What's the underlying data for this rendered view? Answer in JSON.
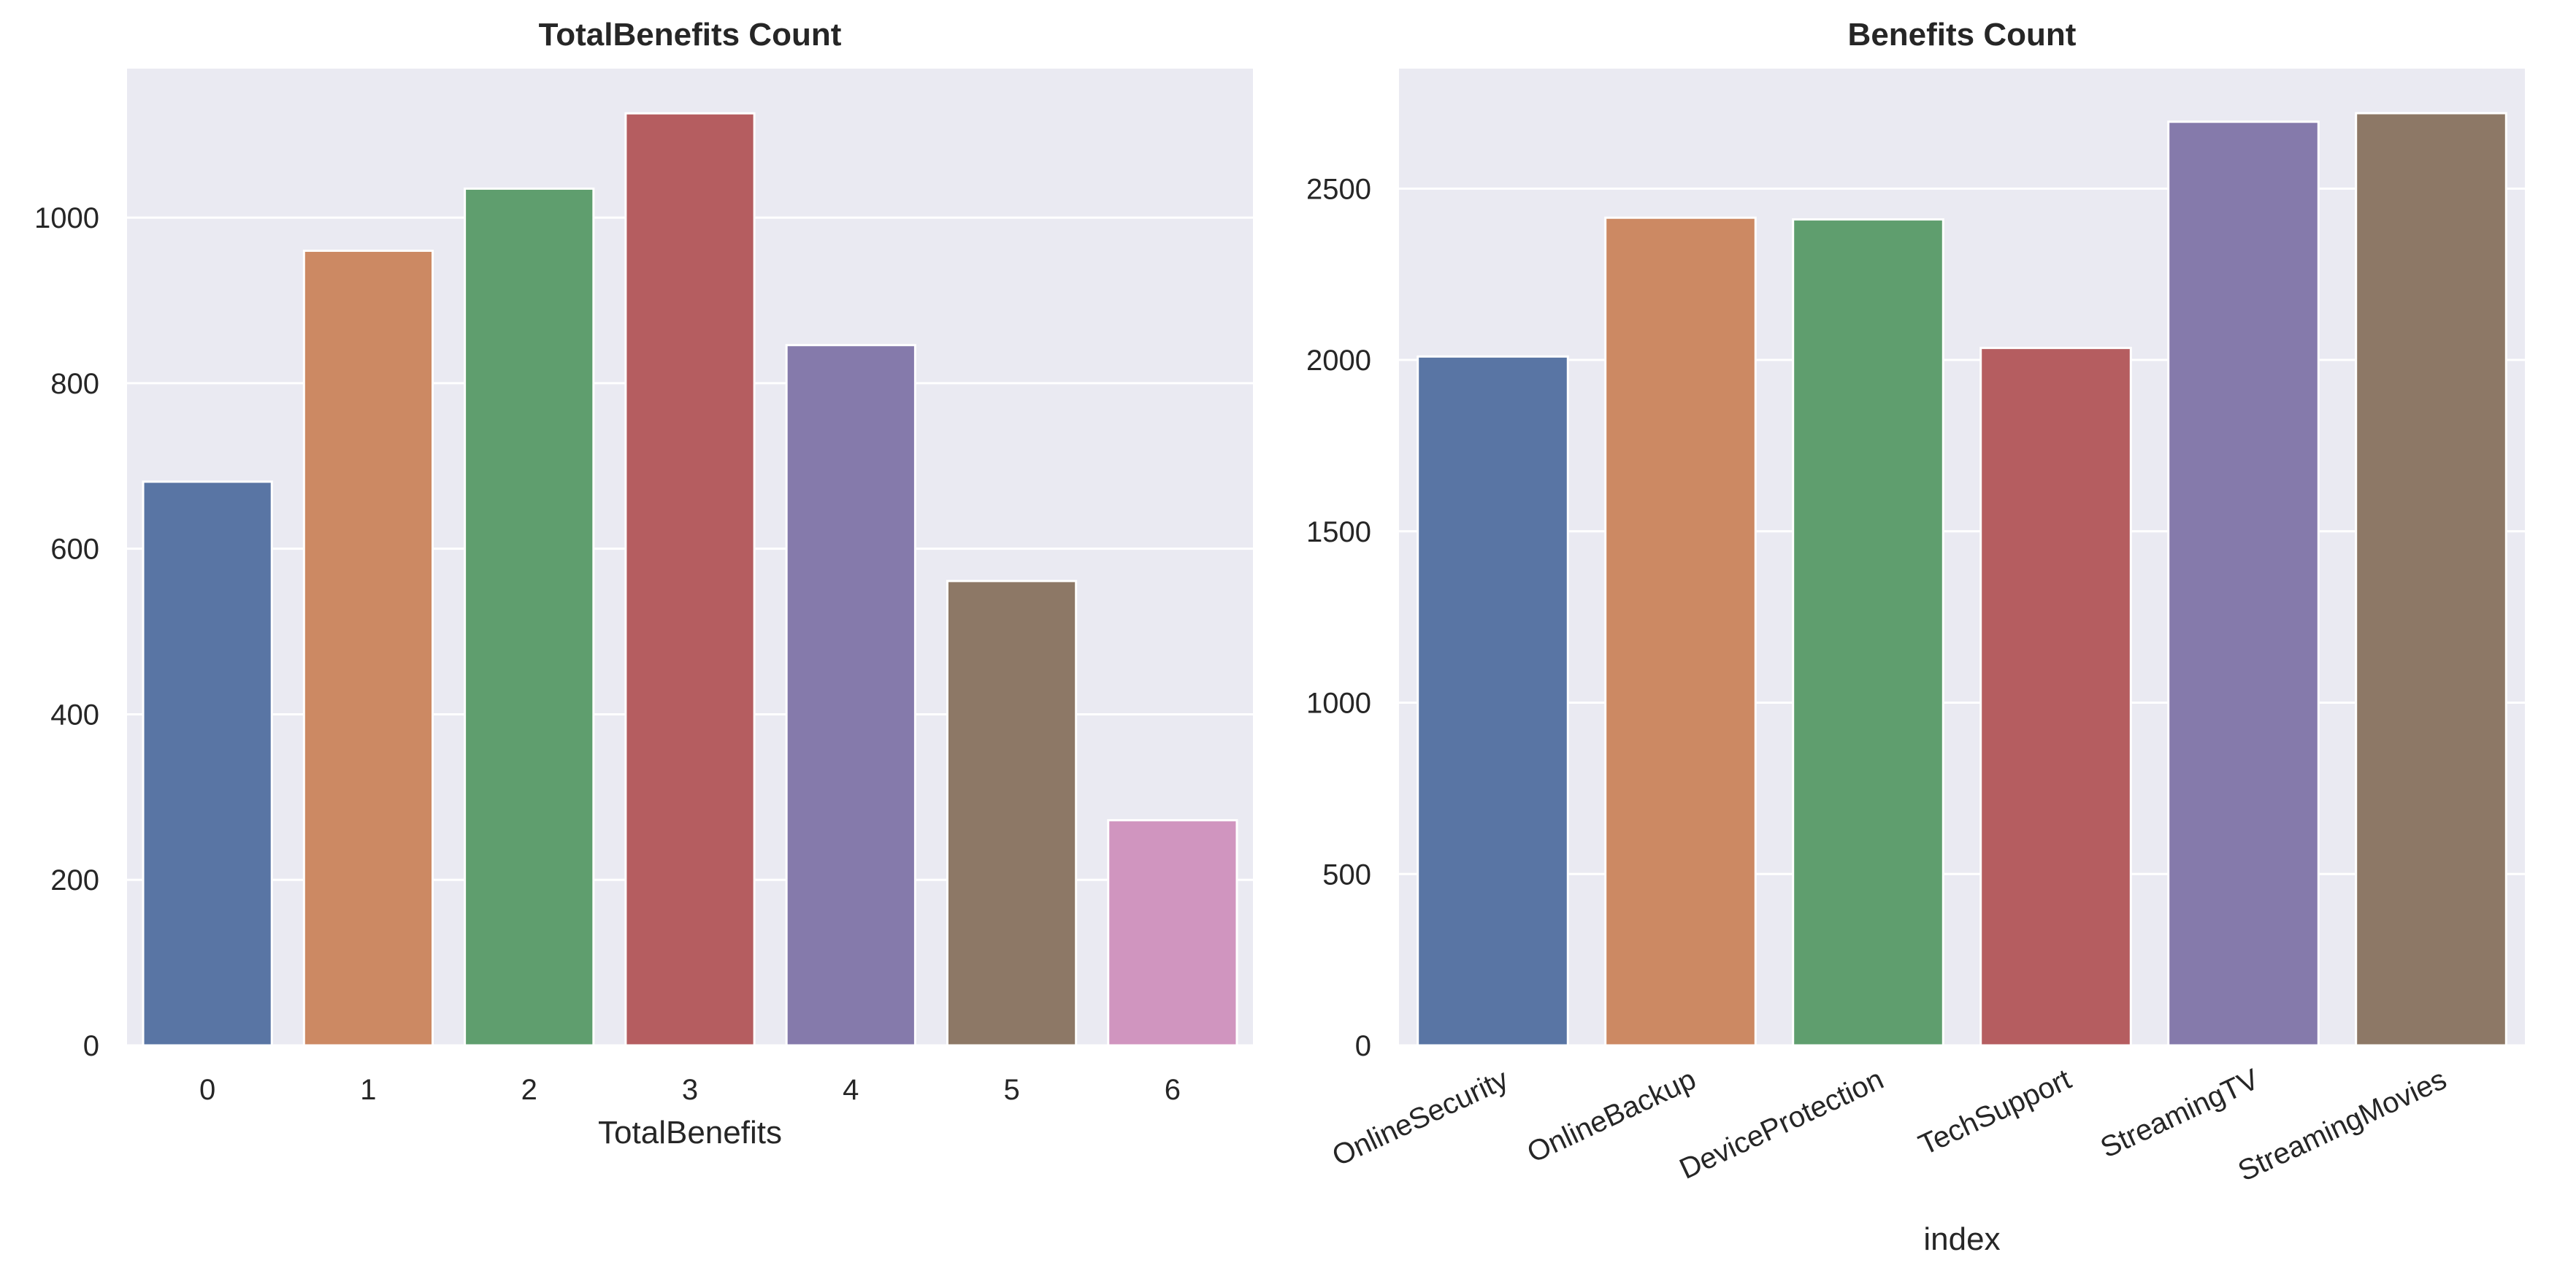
{
  "chart_data": [
    {
      "type": "bar",
      "title": "TotalBenefits Count",
      "xlabel": "TotalBenefits",
      "ylabel": "",
      "categories": [
        "0",
        "1",
        "2",
        "3",
        "4",
        "5",
        "6"
      ],
      "values": [
        681,
        960,
        1035,
        1126,
        846,
        561,
        272
      ],
      "ylim": [
        0,
        1180
      ],
      "yticks": [
        0,
        200,
        400,
        600,
        800,
        1000
      ],
      "grid": true,
      "legend": "none",
      "colors": [
        "#5975a4",
        "#cc8963",
        "#5f9e6e",
        "#b55d60",
        "#857aab",
        "#8d7866",
        "#d095bf"
      ],
      "xtick_rotation": 0
    },
    {
      "type": "bar",
      "title": "Benefits Count",
      "xlabel": "index",
      "ylabel": "",
      "categories": [
        "OnlineSecurity",
        "OnlineBackup",
        "DeviceProtection",
        "TechSupport",
        "StreamingTV",
        "StreamingMovies"
      ],
      "values": [
        2010,
        2415,
        2410,
        2035,
        2695,
        2720
      ],
      "ylim": [
        0,
        2850
      ],
      "yticks": [
        0,
        500,
        1000,
        1500,
        2000,
        2500
      ],
      "grid": true,
      "legend": "none",
      "colors": [
        "#5975a4",
        "#cc8963",
        "#5f9e6e",
        "#b55d60",
        "#857aab",
        "#8d7866"
      ],
      "xtick_rotation": -25
    }
  ]
}
